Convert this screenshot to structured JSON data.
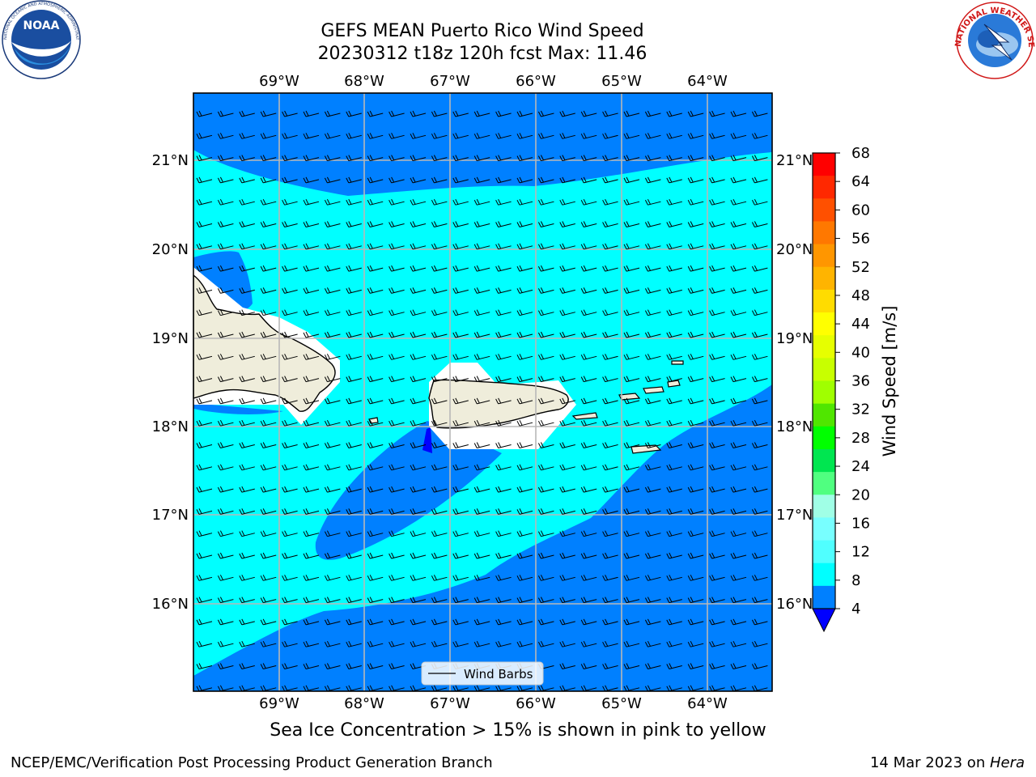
{
  "header": {
    "title_line1": "GEFS MEAN Puerto Rico Wind Speed",
    "title_line2": "20230312 t18z 120h fcst   Max: 11.46"
  },
  "logos": {
    "left": {
      "name": "noaa-logo",
      "text": "NOAA",
      "ring_text": "NATIONAL OCEANIC AND ATMOSPHERIC ADMINISTRATION · U.S. DEPARTMENT OF COMMERCE"
    },
    "right": {
      "name": "nws-logo",
      "ring_text": "NATIONAL WEATHER SERVICE"
    }
  },
  "map": {
    "lon_labels": [
      "69°W",
      "68°W",
      "67°W",
      "66°W",
      "65°W",
      "64°W"
    ],
    "lat_labels": [
      "21°N",
      "20°N",
      "19°N",
      "18°N",
      "17°N",
      "16°N"
    ],
    "legend_label": "Wind Barbs",
    "colors": {
      "band_4_8": "#0080ff",
      "band_8_12": "#00ffff",
      "band_0_4": "#0000ff",
      "land": "#efeddb"
    }
  },
  "colorbar": {
    "label": "Wind Speed [m/s]",
    "ticks": [
      "68",
      "64",
      "60",
      "56",
      "52",
      "48",
      "44",
      "40",
      "36",
      "32",
      "28",
      "24",
      "20",
      "16",
      "12",
      "8",
      "4"
    ],
    "colors_top_to_bottom": [
      "#ff0000",
      "#ff2800",
      "#ff5000",
      "#ff7800",
      "#ff9600",
      "#ffb400",
      "#ffdc00",
      "#ffff00",
      "#e6ff00",
      "#c8ff00",
      "#a0ff00",
      "#50e600",
      "#00ff00",
      "#00e650",
      "#50ff80",
      "#a0ffe6",
      "#78ffff",
      "#50ffff",
      "#00ffff",
      "#0080ff"
    ],
    "extend_color": "#0000ff"
  },
  "subnote": "Sea Ice Concentration > 15% is shown in pink to yellow",
  "footer": {
    "left": "NCEP/EMC/Verification Post Processing Product Generation Branch",
    "right_date": "14 Mar 2023 on ",
    "right_host": "Hera"
  }
}
